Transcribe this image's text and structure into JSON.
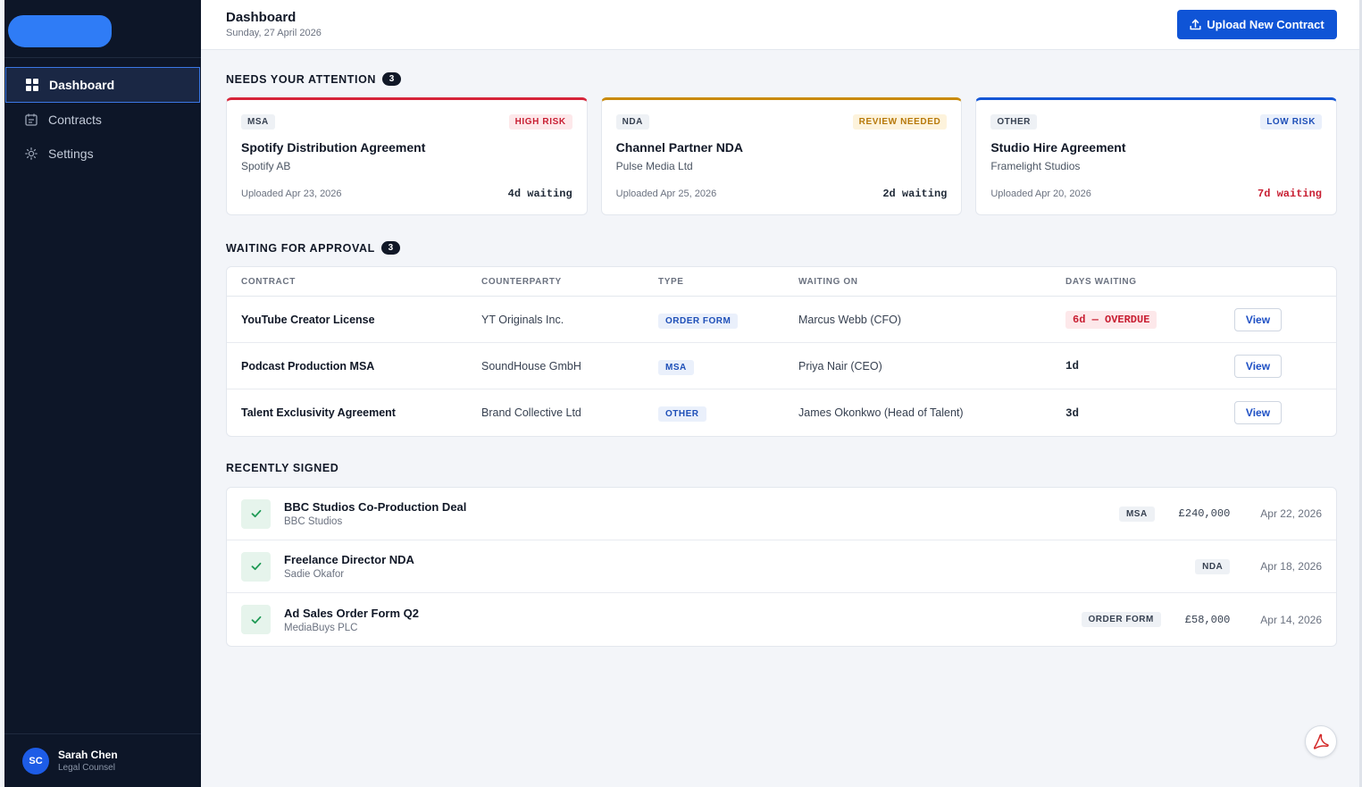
{
  "sidebar": {
    "nav": [
      {
        "label": "Dashboard",
        "icon": "grid-icon",
        "active": true
      },
      {
        "label": "Contracts",
        "icon": "calendar-icon",
        "active": false
      },
      {
        "label": "Settings",
        "icon": "sun-gear-icon",
        "active": false
      }
    ],
    "user": {
      "initials": "SC",
      "name": "Sarah Chen",
      "role": "Legal Counsel"
    }
  },
  "header": {
    "title": "Dashboard",
    "date": "Sunday, 27 April 2026",
    "upload_label": "Upload New Contract"
  },
  "attention": {
    "title": "NEEDS YOUR ATTENTION",
    "count": "3",
    "cards": [
      {
        "type": "MSA",
        "risk": "HIGH RISK",
        "title": "Spotify Distribution Agreement",
        "company": "Spotify AB",
        "uploaded": "Uploaded Apr 23, 2026",
        "waiting": "4d waiting",
        "accent": "#d6243a",
        "risk_color": "#c81e32",
        "risk_bg": "#fde8ea",
        "waiting_color": "#1f2937"
      },
      {
        "type": "NDA",
        "risk": "REVIEW NEEDED",
        "title": "Channel Partner NDA",
        "company": "Pulse Media Ltd",
        "uploaded": "Uploaded Apr 25, 2026",
        "waiting": "2d waiting",
        "accent": "#c98a0a",
        "risk_color": "#b7790a",
        "risk_bg": "#fdf3dc",
        "waiting_color": "#1f2937"
      },
      {
        "type": "OTHER",
        "risk": "LOW RISK",
        "title": "Studio Hire Agreement",
        "company": "Framelight Studios",
        "uploaded": "Uploaded Apr 20, 2026",
        "waiting": "7d waiting",
        "accent": "#1456d6",
        "risk_color": "#1e4fb8",
        "risk_bg": "#eaf0fb",
        "waiting_color": "#c81e32"
      }
    ]
  },
  "approval": {
    "title": "WAITING FOR APPROVAL",
    "count": "3",
    "headers": [
      "CONTRACT",
      "COUNTERPARTY",
      "TYPE",
      "WAITING ON",
      "DAYS WAITING"
    ],
    "rows": [
      {
        "contract": "YouTube Creator License",
        "counterparty": "YT Originals Inc.",
        "type": "ORDER FORM",
        "waiting_on": "Marcus Webb (CFO)",
        "days": "6d — OVERDUE",
        "overdue": true,
        "action": "View"
      },
      {
        "contract": "Podcast Production MSA",
        "counterparty": "SoundHouse GmbH",
        "type": "MSA",
        "waiting_on": "Priya Nair (CEO)",
        "days": "1d",
        "overdue": false,
        "action": "View"
      },
      {
        "contract": "Talent Exclusivity Agreement",
        "counterparty": "Brand Collective Ltd",
        "type": "OTHER",
        "waiting_on": "James Okonkwo (Head of Talent)",
        "days": "3d",
        "overdue": false,
        "action": "View"
      }
    ]
  },
  "signed": {
    "title": "RECENTLY SIGNED",
    "rows": [
      {
        "title": "BBC Studios Co-Production Deal",
        "company": "BBC Studios",
        "type": "MSA",
        "amount": "£240,000",
        "date": "Apr 22, 2026"
      },
      {
        "title": "Freelance Director NDA",
        "company": "Sadie Okafor",
        "type": "NDA",
        "amount": "",
        "date": "Apr 18, 2026"
      },
      {
        "title": "Ad Sales Order Form Q2",
        "company": "MediaBuys PLC",
        "type": "ORDER FORM",
        "amount": "£58,000",
        "date": "Apr 14, 2026"
      }
    ]
  },
  "colors": {
    "brand": "#0f54d6",
    "sidebar_bg": "#0d1628",
    "success": "#1f9a55"
  }
}
